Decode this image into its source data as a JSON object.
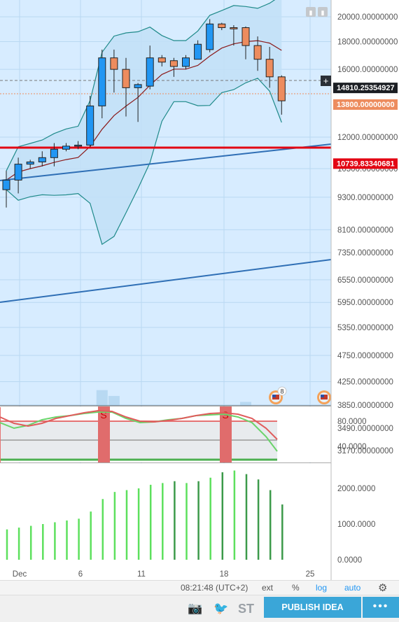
{
  "chart_data": [
    {
      "type": "candlestick",
      "x_tick_labels": [
        "Dec",
        "6",
        "11",
        "18",
        "25"
      ],
      "price_axis_ticks": [
        "20000.00000000",
        "18000.00000000",
        "16000.00000000",
        "12000.00000000",
        "10500.00000000",
        "9300.00000000",
        "8100.00000000",
        "7350.00000000",
        "6550.00000000",
        "5950.00000000",
        "5350.00000000",
        "4750.00000000",
        "4250.00000000",
        "3850.00000000",
        "3490.00000000",
        "3170.00000000"
      ],
      "candles": [
        {
          "o": 9600,
          "h": 10400,
          "l": 8900,
          "c": 10000
        },
        {
          "o": 10000,
          "h": 11000,
          "l": 9450,
          "c": 10700
        },
        {
          "o": 10700,
          "h": 10900,
          "l": 10500,
          "c": 10800
        },
        {
          "o": 10800,
          "h": 11300,
          "l": 10600,
          "c": 11000
        },
        {
          "o": 11000,
          "h": 11700,
          "l": 10600,
          "c": 11400
        },
        {
          "o": 11400,
          "h": 11700,
          "l": 11300,
          "c": 11550
        },
        {
          "o": 11550,
          "h": 11800,
          "l": 11400,
          "c": 11600
        },
        {
          "o": 11600,
          "h": 14300,
          "l": 11500,
          "c": 13700
        },
        {
          "o": 13700,
          "h": 17400,
          "l": 13000,
          "c": 16800
        },
        {
          "o": 16800,
          "h": 17400,
          "l": 14500,
          "c": 16000
        },
        {
          "o": 16000,
          "h": 16800,
          "l": 13100,
          "c": 14800
        },
        {
          "o": 14800,
          "h": 15100,
          "l": 12800,
          "c": 15000
        },
        {
          "o": 14900,
          "h": 17700,
          "l": 14700,
          "c": 16800
        },
        {
          "o": 16800,
          "h": 17000,
          "l": 16200,
          "c": 16500
        },
        {
          "o": 16600,
          "h": 16800,
          "l": 15500,
          "c": 16200
        },
        {
          "o": 16200,
          "h": 17000,
          "l": 16000,
          "c": 16800
        },
        {
          "o": 16700,
          "h": 18100,
          "l": 16700,
          "c": 17800
        },
        {
          "o": 17400,
          "h": 19800,
          "l": 17200,
          "c": 19400
        },
        {
          "o": 19400,
          "h": 19500,
          "l": 18900,
          "c": 19100
        },
        {
          "o": 19100,
          "h": 19300,
          "l": 17700,
          "c": 19000
        },
        {
          "o": 19100,
          "h": 19200,
          "l": 16700,
          "c": 17700
        },
        {
          "o": 17700,
          "h": 18400,
          "l": 15900,
          "c": 16700
        },
        {
          "o": 16700,
          "h": 17600,
          "l": 14800,
          "c": 15500
        },
        {
          "o": 15500,
          "h": 15600,
          "l": 13200,
          "c": 14000
        }
      ],
      "price_tags": [
        {
          "label": "14810.25354927",
          "color": "#1b1e23"
        },
        {
          "label": "13800.00000000",
          "color": "#ed8c5e"
        },
        {
          "label": "10739.83340681",
          "color": "#e30613"
        }
      ],
      "volume_pane_badge": "8"
    },
    {
      "type": "line",
      "name": "stoch-rsi",
      "y_ticks": [
        "80.0000",
        "40.0000"
      ],
      "signal_letter": "S",
      "signal_count": 2
    },
    {
      "type": "bar",
      "name": "histogram",
      "y_ticks": [
        "2000.0000",
        "1000.0000",
        "0.0000"
      ],
      "values": [
        850,
        900,
        950,
        1000,
        1050,
        1100,
        1150,
        1350,
        1700,
        1900,
        1950,
        2000,
        2100,
        2150,
        2200,
        2150,
        2200,
        2300,
        2450,
        2500,
        2400,
        2250,
        1950,
        1550
      ]
    }
  ],
  "header": {
    "btn1": "▮",
    "btn2": "▮"
  },
  "footer": {
    "time": "08:21:48 (UTC+2)",
    "ext": "ext",
    "percent": "%",
    "log": "log",
    "auto": "auto"
  },
  "toolbar": {
    "camera": "📷",
    "twitter": "🐦",
    "st": "ST",
    "publish": "PUBLISH IDEA",
    "more": "•••"
  },
  "colors": {
    "up": "#2196f3",
    "down": "#ed8c5e",
    "bg": "#d7ecff",
    "bb": "#1f8a8a",
    "ma": "#8b1a1a",
    "trend": "#2f6fb5",
    "hline": "#e30613"
  }
}
